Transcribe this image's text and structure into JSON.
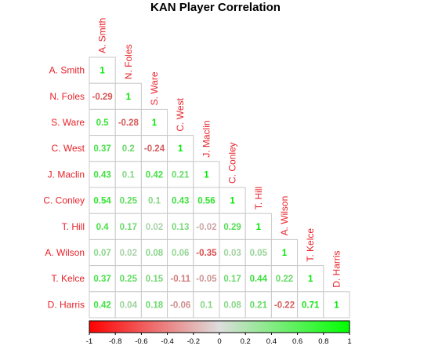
{
  "chart_data": {
    "type": "heatmap",
    "title": "KAN Player Correlation",
    "players": [
      "A. Smith",
      "N. Foles",
      "S. Ware",
      "C. West",
      "J. Maclin",
      "C. Conley",
      "T. Hill",
      "A. Wilson",
      "T. Kelce",
      "D. Harris"
    ],
    "matrix": [
      [
        1
      ],
      [
        -0.29,
        1
      ],
      [
        0.5,
        -0.28,
        1
      ],
      [
        0.37,
        0.2,
        -0.24,
        1
      ],
      [
        0.43,
        0.1,
        0.42,
        0.21,
        1
      ],
      [
        0.54,
        0.25,
        0.1,
        0.43,
        0.56,
        1
      ],
      [
        0.4,
        0.17,
        0.02,
        0.13,
        -0.02,
        0.29,
        1
      ],
      [
        0.07,
        0.02,
        0.08,
        0.06,
        -0.35,
        0.03,
        0.05,
        1
      ],
      [
        0.37,
        0.25,
        0.15,
        -0.11,
        -0.05,
        0.17,
        0.44,
        0.22,
        1
      ],
      [
        0.42,
        0.04,
        0.18,
        -0.06,
        0.1,
        0.08,
        0.21,
        -0.22,
        0.71,
        1
      ]
    ],
    "value_labels": [
      [
        "1"
      ],
      [
        "-0.29",
        "1"
      ],
      [
        "0.5",
        "-0.28",
        "1"
      ],
      [
        "0.37",
        "0.2",
        "-0.24",
        "1"
      ],
      [
        "0.43",
        "0.1",
        "0.42",
        "0.21",
        "1"
      ],
      [
        "0.54",
        "0.25",
        "0.1",
        "0.43",
        "0.56",
        "1"
      ],
      [
        "0.4",
        "0.17",
        "0.02",
        "0.13",
        "-0.02",
        "0.29",
        "1"
      ],
      [
        "0.07",
        "0.02",
        "0.08",
        "0.06",
        "-0.35",
        "0.03",
        "0.05",
        "1"
      ],
      [
        "0.37",
        "0.25",
        "0.15",
        "-0.11",
        "-0.05",
        "0.17",
        "0.44",
        "0.22",
        "1"
      ],
      [
        "0.42",
        "0.04",
        "0.18",
        "-0.06",
        "0.1",
        "0.08",
        "0.21",
        "-0.22",
        "0.71",
        "1"
      ]
    ],
    "colorbar": {
      "range": [
        -1,
        1
      ],
      "ticks": [
        "-1",
        "-0.8",
        "-0.6",
        "-0.4",
        "-0.2",
        "0",
        "0.2",
        "0.4",
        "0.6",
        "0.8",
        "1"
      ],
      "low_color": "#ff0000",
      "mid_color": "#dddddd",
      "high_color": "#00ff00",
      "position": "bottom"
    },
    "label_color": "#e8222a",
    "grid_color": "#c8c8c8"
  }
}
